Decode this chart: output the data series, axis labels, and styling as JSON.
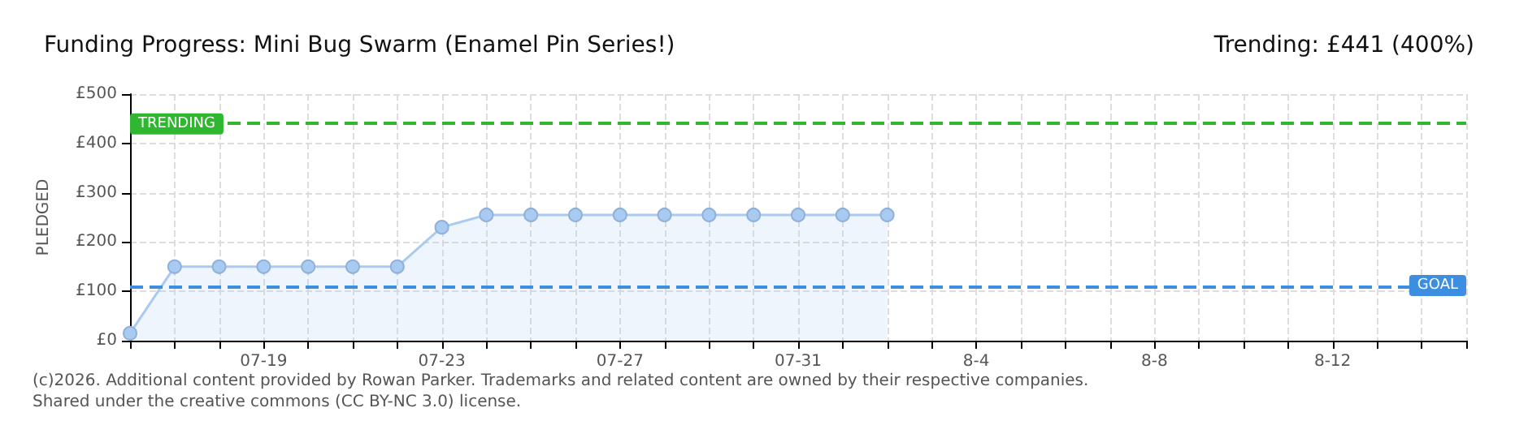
{
  "chart_data": {
    "type": "area",
    "title": "Funding Progress: Mini Bug Swarm (Enamel Pin Series!)",
    "subtitle": "Trending: £441 (400%)",
    "ylabel": "PLEDGED",
    "categories": [
      null,
      null,
      null,
      "07-19",
      null,
      null,
      null,
      "07-23",
      null,
      null,
      null,
      "07-27",
      null,
      null,
      null,
      "07-31",
      null,
      null,
      null,
      "8-4",
      null,
      null,
      null,
      "8-8",
      null,
      null,
      null,
      "8-12",
      null,
      null,
      null
    ],
    "series": [
      {
        "color": "#a9cbf2",
        "values": [
          15,
          150,
          150,
          150,
          150,
          150,
          150,
          230,
          255,
          255,
          255,
          255,
          255,
          255,
          255,
          255,
          255,
          255,
          null,
          null,
          null,
          null,
          null,
          null,
          null,
          null,
          null,
          null,
          null,
          null,
          null
        ]
      }
    ],
    "ylim": [
      0,
      500
    ],
    "yticks": [
      {
        "value": 0,
        "label": "£0"
      },
      {
        "value": 100,
        "label": "£100"
      },
      {
        "value": 200,
        "label": "£200"
      },
      {
        "value": 300,
        "label": "£300"
      },
      {
        "value": 400,
        "label": "£400"
      },
      {
        "value": 500,
        "label": "£500"
      }
    ],
    "ref_lines": [
      {
        "axis": "y",
        "value": 441,
        "label": "TRENDING",
        "color": "#2fb82f",
        "line_style": "dashed"
      },
      {
        "axis": "y",
        "value": 110,
        "label": "GOAL",
        "color": "#3d8ee0",
        "line_style": "dashed"
      }
    ],
    "annotations": [
      "(c)2026. Additional content provided by Rowan Parker. Trademarks and related content are owned by their respective companies.",
      "Shared under the creative commons (CC BY-NC 3.0) license."
    ],
    "grid": true,
    "marker": "circle"
  }
}
